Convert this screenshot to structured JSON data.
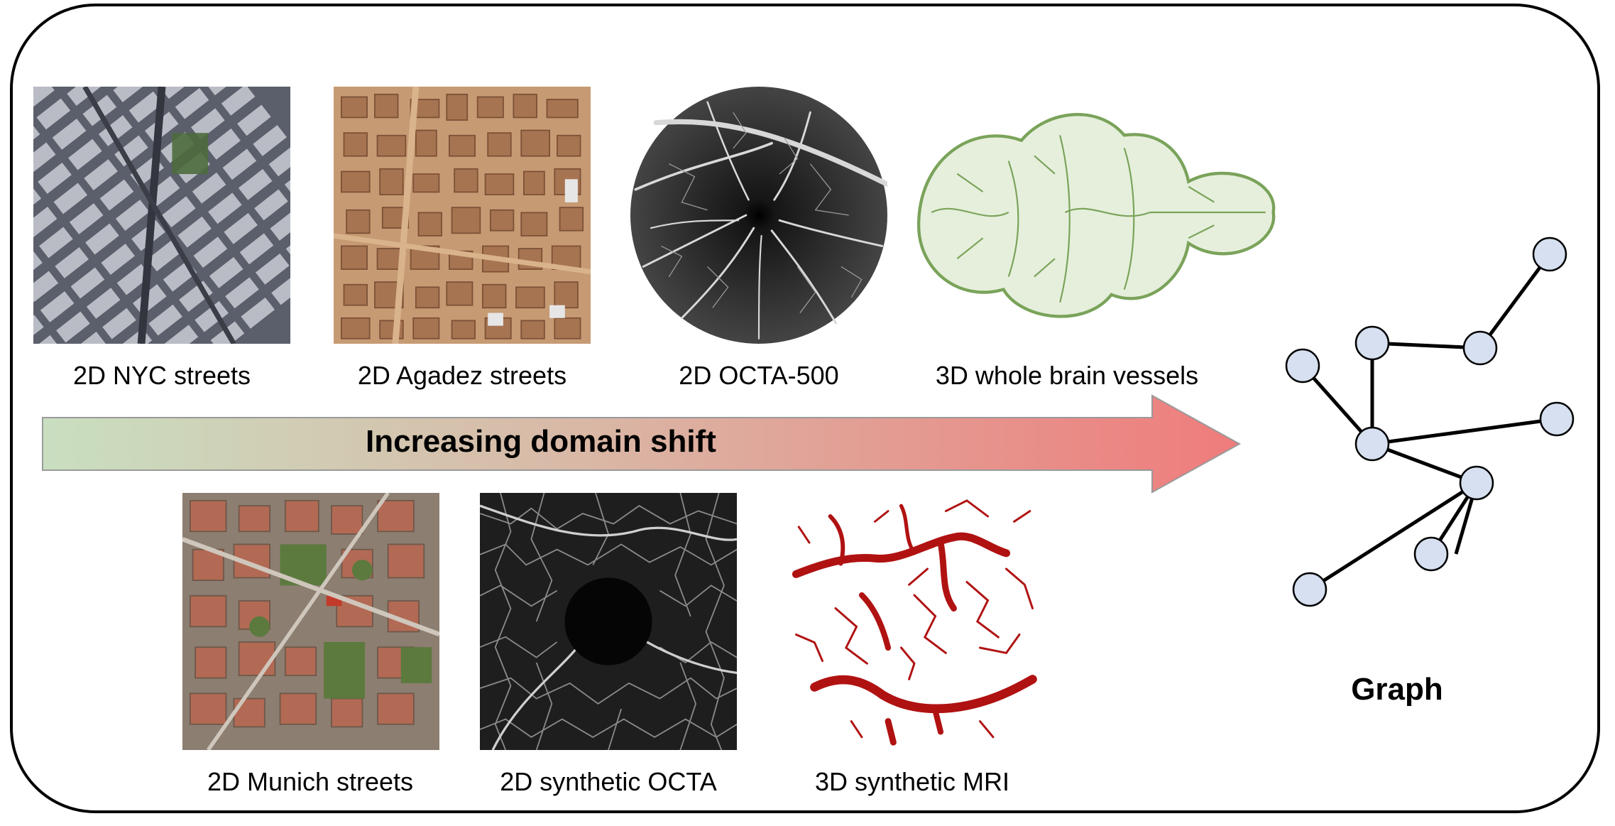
{
  "figure": {
    "top_row": [
      {
        "id": "nyc",
        "caption": "2D NYC streets"
      },
      {
        "id": "agadez",
        "caption": "2D Agadez streets"
      },
      {
        "id": "octa500",
        "caption": "2D OCTA-500"
      },
      {
        "id": "brain",
        "caption": "3D  whole brain vessels"
      }
    ],
    "bottom_row": [
      {
        "id": "munich",
        "caption": "2D Munich streets"
      },
      {
        "id": "synoct",
        "caption": "2D synthetic OCTA"
      },
      {
        "id": "synmri",
        "caption": "3D synthetic MRI"
      }
    ],
    "arrow_label": "Increasing domain shift",
    "graph_label": "Graph",
    "colors": {
      "arrow_start": "#c9dfc0",
      "arrow_end": "#ef7c7c",
      "node_fill": "#d6e0f0",
      "vessel_red": "#b01212",
      "brain_green": "#7aa35a"
    }
  }
}
